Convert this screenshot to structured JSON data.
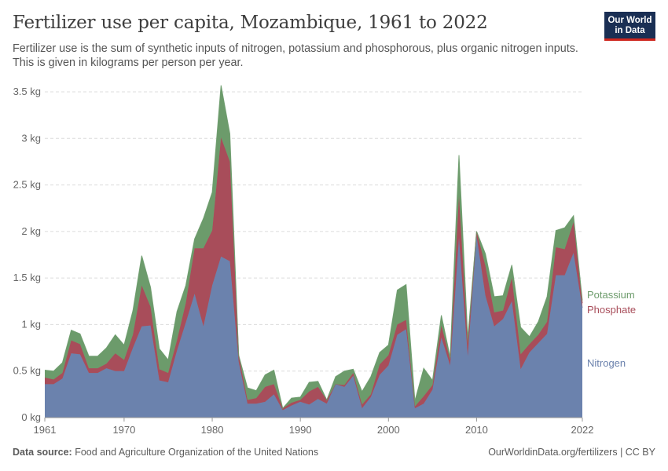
{
  "header": {
    "title": "Fertilizer use per capita, Mozambique, 1961 to 2022",
    "subtitle": "Fertilizer use is the sum of synthetic inputs of nitrogen, potassium and phosphorous, plus organic nitrogen inputs. This is given in kilograms per person per year."
  },
  "logo": {
    "line1": "Our World",
    "line2": "in Data",
    "bg_color": "#1a2f54",
    "accent_color": "#ce261e"
  },
  "footer": {
    "source_label": "Data source:",
    "source_text": "Food and Agriculture Organization of the United Nations",
    "right_text": "OurWorldinData.org/fertilizers | CC BY"
  },
  "chart_data": {
    "type": "area",
    "stacked": true,
    "x": [
      1961,
      1962,
      1963,
      1964,
      1965,
      1966,
      1967,
      1968,
      1969,
      1970,
      1971,
      1972,
      1973,
      1974,
      1975,
      1976,
      1977,
      1978,
      1979,
      1980,
      1981,
      1982,
      1983,
      1984,
      1985,
      1986,
      1987,
      1988,
      1989,
      1990,
      1991,
      1992,
      1993,
      1994,
      1995,
      1996,
      1997,
      1998,
      1999,
      2000,
      2001,
      2002,
      2003,
      2004,
      2005,
      2006,
      2007,
      2008,
      2009,
      2010,
      2011,
      2012,
      2013,
      2014,
      2015,
      2016,
      2017,
      2018,
      2019,
      2020,
      2021,
      2022
    ],
    "series": [
      {
        "name": "Nitrogen",
        "color": "#6b82ad",
        "values": [
          0.36,
          0.36,
          0.42,
          0.69,
          0.68,
          0.48,
          0.48,
          0.53,
          0.5,
          0.5,
          0.75,
          0.98,
          0.99,
          0.4,
          0.38,
          0.72,
          1.02,
          1.33,
          0.98,
          1.42,
          1.73,
          1.68,
          0.6,
          0.15,
          0.15,
          0.17,
          0.25,
          0.08,
          0.13,
          0.17,
          0.14,
          0.2,
          0.15,
          0.36,
          0.33,
          0.45,
          0.1,
          0.22,
          0.46,
          0.56,
          0.89,
          0.95,
          0.1,
          0.15,
          0.3,
          0.86,
          0.56,
          1.93,
          0.66,
          1.95,
          1.31,
          0.98,
          1.06,
          1.25,
          0.52,
          0.7,
          0.8,
          0.9,
          1.53,
          1.53,
          1.77,
          1.18
        ]
      },
      {
        "name": "Phosphate",
        "color": "#a84d5a",
        "values": [
          0.07,
          0.05,
          0.06,
          0.14,
          0.11,
          0.05,
          0.05,
          0.05,
          0.19,
          0.12,
          0.14,
          0.44,
          0.2,
          0.12,
          0.1,
          0.11,
          0.21,
          0.49,
          0.84,
          0.59,
          1.28,
          1.07,
          0.07,
          0.04,
          0.06,
          0.16,
          0.11,
          0.02,
          0.03,
          0.02,
          0.14,
          0.13,
          0.04,
          0.0,
          0.02,
          0.03,
          0.04,
          0.03,
          0.11,
          0.11,
          0.11,
          0.1,
          0.02,
          0.08,
          0.05,
          0.13,
          0.06,
          0.45,
          0.13,
          0.05,
          0.32,
          0.15,
          0.09,
          0.25,
          0.16,
          0.09,
          0.09,
          0.13,
          0.3,
          0.28,
          0.33,
          0.05
        ]
      },
      {
        "name": "Potassium",
        "color": "#6c9b6b",
        "values": [
          0.08,
          0.09,
          0.11,
          0.11,
          0.11,
          0.13,
          0.13,
          0.17,
          0.2,
          0.16,
          0.26,
          0.32,
          0.21,
          0.22,
          0.14,
          0.31,
          0.19,
          0.1,
          0.32,
          0.41,
          0.56,
          0.3,
          0.0,
          0.13,
          0.08,
          0.13,
          0.15,
          0.0,
          0.05,
          0.03,
          0.1,
          0.06,
          0.0,
          0.08,
          0.15,
          0.04,
          0.14,
          0.19,
          0.13,
          0.11,
          0.37,
          0.38,
          0.06,
          0.3,
          0.05,
          0.11,
          0.03,
          0.44,
          0.06,
          0.0,
          0.13,
          0.17,
          0.16,
          0.14,
          0.29,
          0.08,
          0.14,
          0.27,
          0.18,
          0.23,
          0.07,
          0.03
        ]
      }
    ],
    "y_ticks": [
      0,
      0.5,
      1,
      1.5,
      2,
      2.5,
      3,
      3.5
    ],
    "y_tick_labels": [
      "0 kg",
      "0.5 kg",
      "1 kg",
      "1.5 kg",
      "2 kg",
      "2.5 kg",
      "3 kg",
      "3.5 kg"
    ],
    "x_ticks": [
      1961,
      1970,
      1980,
      1990,
      2000,
      2010,
      2022
    ],
    "x_tick_labels": [
      "1961",
      "1970",
      "1980",
      "1990",
      "2000",
      "2010",
      "2022"
    ],
    "ylim": [
      0,
      3.5
    ],
    "xlim": [
      1961,
      2022
    ],
    "grid": "horizontal-dashed",
    "legend": "right-end-labels"
  }
}
